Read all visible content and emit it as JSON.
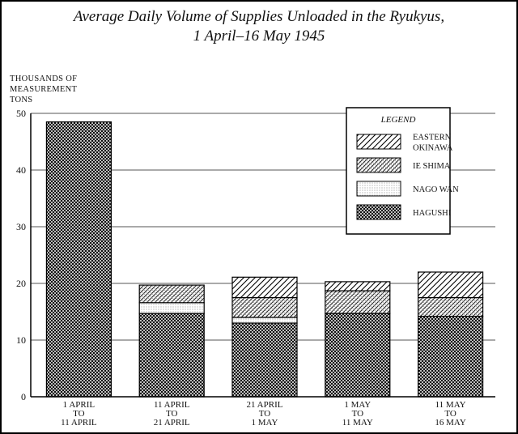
{
  "chart_data": {
    "type": "bar",
    "stacked": true,
    "title_line1": "Average Daily Volume of Supplies Unloaded in the Ryukyus,",
    "title_line2": "1 April–16 May 1945",
    "ylabel_lines": [
      "THOUSANDS OF",
      "MEASUREMENT",
      "TONS"
    ],
    "xlabel": "",
    "ylim": [
      0,
      50
    ],
    "yticks": [
      0,
      10,
      20,
      30,
      40,
      50
    ],
    "grid": true,
    "legend_title": "LEGEND",
    "legend_position": "top-right",
    "categories": [
      [
        "1 APRIL",
        "TO",
        "11 APRIL"
      ],
      [
        "11 APRIL",
        "TO",
        "21 APRIL"
      ],
      [
        "21 APRIL",
        "TO",
        "1 MAY"
      ],
      [
        "1 MAY",
        "TO",
        "11 MAY"
      ],
      [
        "11 MAY",
        "TO",
        "16 MAY"
      ]
    ],
    "series": [
      {
        "name": "HAGUSHI",
        "pattern": "crosshatch",
        "values": [
          48.5,
          14.7,
          13.0,
          14.7,
          14.2
        ]
      },
      {
        "name": "NAGO WAN",
        "pattern": "dots",
        "values": [
          0,
          1.9,
          1.0,
          0,
          0
        ]
      },
      {
        "name": "IE SHIMA",
        "pattern": "hatch-dense",
        "values": [
          0,
          3.1,
          3.5,
          4.0,
          3.3
        ]
      },
      {
        "name": "EASTERN OKINAWA",
        "pattern": "hatch-sparse",
        "values": [
          0,
          0,
          3.6,
          1.6,
          4.5
        ]
      }
    ],
    "legend_items": [
      {
        "lines": [
          "EASTERN",
          "OKINAWA"
        ],
        "pattern": "hatch-sparse"
      },
      {
        "lines": [
          "IE SHIMA"
        ],
        "pattern": "hatch-dense"
      },
      {
        "lines": [
          "NAGO WAN"
        ],
        "pattern": "dots"
      },
      {
        "lines": [
          "HAGUSHI"
        ],
        "pattern": "crosshatch"
      }
    ]
  }
}
